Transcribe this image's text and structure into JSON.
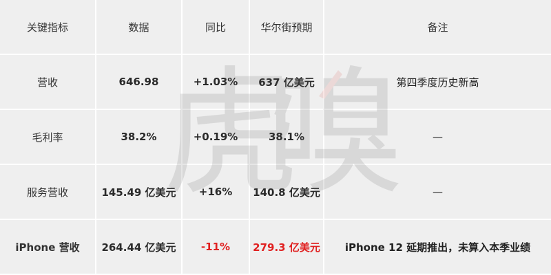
{
  "table": {
    "headers": [
      "关键指标",
      "数据",
      "同比",
      "华尔街预期",
      "备注"
    ],
    "rows": [
      {
        "metric": "营收",
        "value": "646.98",
        "yoy": "+1.03%",
        "expectation": "637 亿美元",
        "note": "第四季度历史新高"
      },
      {
        "metric": "毛利率",
        "value": "38.2%",
        "yoy": "+0.19%",
        "expectation": "38.1%",
        "note": "—"
      },
      {
        "metric": "服务营收",
        "value": "145.49 亿美元",
        "yoy": "+16%",
        "expectation": "140.8 亿美元",
        "note": "—"
      },
      {
        "metric": "iPhone 营收",
        "value": "264.44 亿美元",
        "yoy": "-11%",
        "expectation": "279.3 亿美元",
        "note": "iPhone 12 延期推出，未算入本季业绩"
      }
    ]
  },
  "colors": {
    "cell_background": "#efefef",
    "negative_highlight": "#e02020",
    "text": "#2a2a2a"
  },
  "watermark": {
    "text_left": "虎",
    "text_right": "嗅",
    "accent_color": "#d9534f"
  }
}
